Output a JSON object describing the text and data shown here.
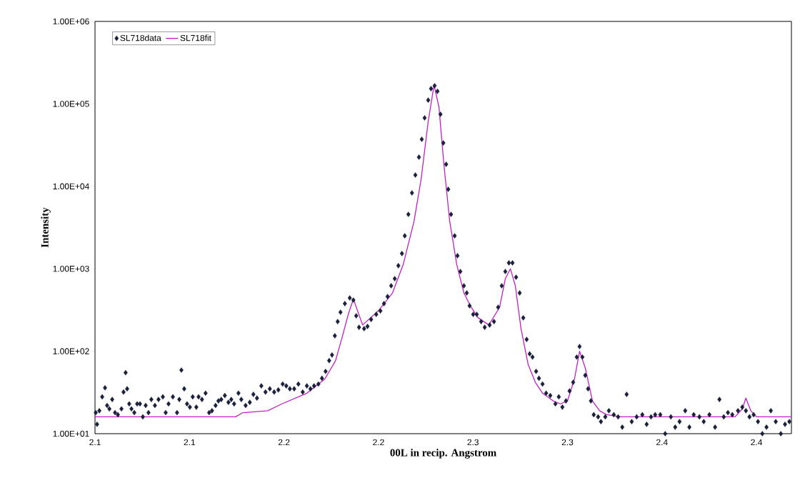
{
  "chart_data": {
    "type": "scatter",
    "xlabel": "00L in recip. Angstrom",
    "ylabel": "Intensity",
    "log": "y",
    "legend": "top left",
    "xlim": [
      2.1,
      2.4685
    ],
    "ylim": [
      10,
      1000000
    ],
    "xticks": [
      {
        "value": 2.1,
        "label": "2.1"
      },
      {
        "value": 2.15,
        "label": "2.1"
      },
      {
        "value": 2.2,
        "label": "2.2"
      },
      {
        "value": 2.25,
        "label": "2.2"
      },
      {
        "value": 2.3,
        "label": "2.3"
      },
      {
        "value": 2.35,
        "label": "2.3"
      },
      {
        "value": 2.4,
        "label": "2.4"
      },
      {
        "value": 2.45,
        "label": "2.4"
      }
    ],
    "yticks": [
      {
        "value": 10,
        "label": "1.00E+01"
      },
      {
        "value": 100,
        "label": "1.00E+02"
      },
      {
        "value": 1000,
        "label": "1.00E+03"
      },
      {
        "value": 10000,
        "label": "1.00E+04"
      },
      {
        "value": 100000,
        "label": "1.00E+05"
      },
      {
        "value": 1000000,
        "label": "1.00E+06"
      }
    ],
    "series": [
      {
        "name": "SL718data",
        "marker": "diamond",
        "color": "#1a1f3a",
        "x": [
          2.1004,
          2.1011,
          2.1023,
          2.1038,
          2.1053,
          2.1064,
          2.1076,
          2.1091,
          2.1106,
          2.1121,
          2.114,
          2.1151,
          2.1162,
          2.117,
          2.1181,
          2.1193,
          2.1208,
          2.1223,
          2.1238,
          2.1253,
          2.1268,
          2.1283,
          2.1298,
          2.1317,
          2.1336,
          2.1359,
          2.1374,
          2.1389,
          2.1412,
          2.1434,
          2.1446,
          2.1457,
          2.1472,
          2.1487,
          2.1502,
          2.1517,
          2.1536,
          2.1548,
          2.1566,
          2.1585,
          2.1604,
          2.1619,
          2.1638,
          2.1653,
          2.1668,
          2.1687,
          2.1706,
          2.1721,
          2.1736,
          2.1759,
          2.1774,
          2.1797,
          2.1819,
          2.1838,
          2.1857,
          2.188,
          2.1902,
          2.1925,
          2.1948,
          2.197,
          2.1993,
          2.2012,
          2.2031,
          2.2054,
          2.2076,
          2.2099,
          2.2121,
          2.214,
          2.2159,
          2.2182,
          2.2201,
          2.222,
          2.2239,
          2.2254,
          2.2269,
          2.2284,
          2.2299,
          2.2322,
          2.2348,
          2.2367,
          2.2382,
          2.2397,
          2.2424,
          2.2442,
          2.2461,
          2.2488,
          2.251,
          2.2529,
          2.2548,
          2.2567,
          2.2586,
          2.2605,
          2.2624,
          2.2639,
          2.2658,
          2.2677,
          2.2695,
          2.2714,
          2.2729,
          2.2744,
          2.2763,
          2.2778,
          2.2797,
          2.2812,
          2.2828,
          2.2843,
          2.2858,
          2.2869,
          2.2884,
          2.2903,
          2.2918,
          2.2933,
          2.2952,
          2.2967,
          2.2982,
          2.3001,
          2.302,
          2.3043,
          2.3062,
          2.3088,
          2.3111,
          2.3133,
          2.3152,
          2.3171,
          2.319,
          2.3209,
          2.3228,
          2.3247,
          2.3266,
          2.3284,
          2.33,
          2.3315,
          2.3334,
          2.3349,
          2.3368,
          2.3387,
          2.3409,
          2.3436,
          2.3454,
          2.3473,
          2.3492,
          2.3511,
          2.353,
          2.3549,
          2.3564,
          2.3579,
          2.3594,
          2.3609,
          2.3624,
          2.3639,
          2.3662,
          2.3677,
          2.37,
          2.3719,
          2.3745,
          2.3768,
          2.379,
          2.3813,
          2.384,
          2.3866,
          2.3896,
          2.3919,
          2.3942,
          2.3964,
          2.3991,
          2.4017,
          2.4047,
          2.407,
          2.4093,
          2.4123,
          2.4145,
          2.4168,
          2.4198,
          2.4221,
          2.4251,
          2.4281,
          2.4304,
          2.4327,
          2.4349,
          2.4372,
          2.4402,
          2.4425,
          2.4444,
          2.4463,
          2.4485,
          2.4508,
          2.4531,
          2.4553,
          2.4576,
          2.4602,
          2.4629,
          2.4651,
          2.4674
        ],
        "values": [
          18,
          13,
          19,
          28,
          36,
          22,
          20,
          26,
          18,
          17,
          20,
          32,
          55,
          35,
          23,
          20,
          18,
          23,
          23,
          16,
          22,
          18,
          26,
          22,
          26,
          28,
          18,
          23,
          28,
          18,
          26,
          59,
          35,
          23,
          21,
          28,
          21,
          28,
          26,
          31,
          18,
          19,
          22,
          25,
          26,
          29,
          24,
          26,
          23,
          31,
          26,
          22,
          24,
          30,
          27,
          38,
          32,
          35,
          32,
          34,
          40,
          38,
          35,
          35,
          40,
          32,
          38,
          35,
          38,
          40,
          47,
          57,
          77,
          90,
          154,
          229,
          297,
          378,
          443,
          417,
          269,
          195,
          188,
          200,
          243,
          280,
          309,
          378,
          460,
          622,
          759,
          1090,
          1530,
          2510,
          4570,
          8320,
          13700,
          22600,
          37200,
          67600,
          111000,
          153000,
          166000,
          142000,
          74800,
          33600,
          18500,
          9200,
          4570,
          2510,
          1440,
          927,
          622,
          509,
          356,
          280,
          280,
          229,
          195,
          208,
          229,
          342,
          622,
          927,
          1180,
          1180,
          790,
          509,
          254,
          139,
          93,
          85,
          57,
          47,
          40,
          31,
          29,
          23,
          28,
          21,
          25,
          33,
          42,
          85,
          114,
          85,
          51,
          35,
          25,
          17,
          16,
          14,
          16,
          19,
          17,
          16,
          12,
          30,
          14,
          16,
          17,
          13,
          16,
          17,
          17,
          10,
          16,
          12,
          14,
          19,
          12,
          17,
          16,
          14,
          17,
          12,
          26,
          16,
          18,
          17,
          19,
          21,
          19,
          16,
          17,
          14,
          10,
          12,
          19,
          14,
          10,
          13,
          14
        ]
      },
      {
        "name": "SL718fit",
        "type": "line",
        "marker": "none",
        "color": "#c020c0",
        "x": [
          2.1,
          2.1744,
          2.1782,
          2.1914,
          2.1989,
          2.2121,
          2.2216,
          2.2273,
          2.231,
          2.234,
          2.2367,
          2.2416,
          2.2499,
          2.2574,
          2.2631,
          2.2688,
          2.2726,
          2.2763,
          2.2794,
          2.282,
          2.2846,
          2.2877,
          2.2914,
          2.2952,
          2.299,
          2.3028,
          2.3084,
          2.3141,
          2.3171,
          2.3198,
          2.3224,
          2.3254,
          2.3292,
          2.333,
          2.3368,
          2.3424,
          2.3462,
          2.35,
          2.3537,
          2.3564,
          2.3594,
          2.3632,
          2.367,
          2.3707,
          2.3783,
          2.4387,
          2.4425,
          2.4444,
          2.447,
          2.45,
          2.4682
        ],
        "values": [
          16,
          16,
          18,
          19,
          23,
          31,
          46,
          77,
          154,
          280,
          430,
          208,
          309,
          509,
          1130,
          3750,
          12400,
          61200,
          170000,
          91200,
          18500,
          3750,
          1130,
          509,
          342,
          254,
          208,
          342,
          759,
          1000,
          622,
          188,
          69,
          42,
          31,
          25,
          23,
          25,
          46,
          100,
          63,
          25,
          19,
          17,
          16,
          16,
          20,
          27,
          19,
          16,
          16
        ]
      }
    ]
  }
}
